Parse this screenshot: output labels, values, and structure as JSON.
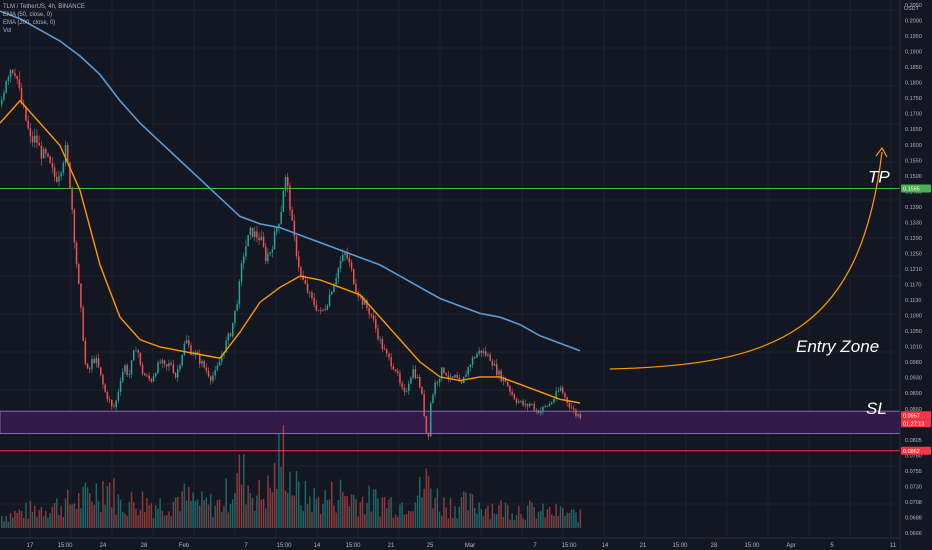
{
  "legend": {
    "symbol": "TLM / TetherUS, 4h, BINANCE",
    "ema50": "EMA (50, close, 0)",
    "ema200": "EMA (200, close, 0)",
    "vol": "Vol"
  },
  "price_axis": {
    "currency": "USDT",
    "ticks": [
      "0.2050",
      "0.2000",
      "0.1950",
      "0.1900",
      "0.1850",
      "0.1800",
      "0.1750",
      "0.1700",
      "0.1650",
      "0.1600",
      "0.1550",
      "0.1500",
      "0.1450",
      "0.1390",
      "0.1330",
      "0.1290",
      "0.1250",
      "0.1210",
      "0.1170",
      "0.1130",
      "0.1090",
      "0.1050",
      "0.1010",
      "0.0980",
      "0.0930",
      "0.0890",
      "0.0860",
      "0.0830",
      "0.0805",
      "0.0780",
      "0.0755",
      "0.0730",
      "0.0708",
      "0.0688",
      "0.0666"
    ],
    "tp_tag": "0.1565",
    "price_tag": "0.0957",
    "countdown_tag": "01:27:13",
    "sl_tag": "0.0862",
    "colors": {
      "tp": "#4caf50",
      "price": "#f23645",
      "sl": "#f23645"
    }
  },
  "time_axis": {
    "ticks": [
      "17",
      "15:00",
      "24",
      "28",
      "Feb",
      "7",
      "15:00",
      "14",
      "15:00",
      "21",
      "25",
      "Mar",
      "7",
      "15:00",
      "14",
      "21",
      "15:00",
      "28",
      "15:00",
      "Apr",
      "5",
      "11"
    ]
  },
  "annotations": {
    "tp": "TP",
    "entry": "Entry Zone",
    "sl": "SL",
    "colors": {
      "tp_line": "#4caf50",
      "sl_line": "#f23645",
      "zone_fill": "#311a47",
      "zone_border": "#9c7fcf",
      "arrow": "#ff9800"
    }
  },
  "chart_data": {
    "type": "candlestick",
    "symbol": "TLM / TetherUS",
    "interval": "4h",
    "exchange": "BINANCE",
    "ylim": [
      0.0655,
      0.207
    ],
    "series_colors": {
      "up": "#26a69a",
      "down": "#ef5350",
      "ema50": "#ff9800",
      "ema200": "#5b9bd5"
    },
    "close_path": [
      [
        0,
        0.179
      ],
      [
        5,
        0.186
      ],
      [
        10,
        0.189
      ],
      [
        15,
        0.188
      ],
      [
        20,
        0.18
      ],
      [
        25,
        0.175
      ],
      [
        30,
        0.169
      ],
      [
        35,
        0.17
      ],
      [
        40,
        0.166
      ],
      [
        45,
        0.165
      ],
      [
        50,
        0.162
      ],
      [
        55,
        0.159
      ],
      [
        60,
        0.162
      ],
      [
        65,
        0.167
      ],
      [
        70,
        0.156
      ],
      [
        74,
        0.142
      ],
      [
        78,
        0.13
      ],
      [
        82,
        0.118
      ],
      [
        85,
        0.108
      ],
      [
        88,
        0.107
      ],
      [
        92,
        0.111
      ],
      [
        96,
        0.11
      ],
      [
        100,
        0.106
      ],
      [
        104,
        0.102
      ],
      [
        108,
        0.1
      ],
      [
        112,
        0.097
      ],
      [
        116,
        0.1
      ],
      [
        120,
        0.106
      ],
      [
        124,
        0.109
      ],
      [
        128,
        0.106
      ],
      [
        132,
        0.111
      ],
      [
        136,
        0.115
      ],
      [
        140,
        0.108
      ],
      [
        145,
        0.106
      ],
      [
        150,
        0.105
      ],
      [
        155,
        0.108
      ],
      [
        160,
        0.11
      ],
      [
        165,
        0.108
      ],
      [
        170,
        0.11
      ],
      [
        175,
        0.106
      ],
      [
        180,
        0.111
      ],
      [
        185,
        0.116
      ],
      [
        190,
        0.113
      ],
      [
        195,
        0.112
      ],
      [
        200,
        0.11
      ],
      [
        205,
        0.108
      ],
      [
        210,
        0.106
      ],
      [
        215,
        0.107
      ],
      [
        220,
        0.111
      ],
      [
        225,
        0.115
      ],
      [
        230,
        0.118
      ],
      [
        234,
        0.123
      ],
      [
        238,
        0.129
      ],
      [
        242,
        0.138
      ],
      [
        246,
        0.142
      ],
      [
        250,
        0.145
      ],
      [
        255,
        0.144
      ],
      [
        260,
        0.143
      ],
      [
        265,
        0.138
      ],
      [
        270,
        0.14
      ],
      [
        275,
        0.145
      ],
      [
        280,
        0.15
      ],
      [
        284,
        0.16
      ],
      [
        288,
        0.155
      ],
      [
        292,
        0.145
      ],
      [
        296,
        0.139
      ],
      [
        300,
        0.133
      ],
      [
        305,
        0.13
      ],
      [
        310,
        0.127
      ],
      [
        315,
        0.125
      ],
      [
        320,
        0.123
      ],
      [
        325,
        0.125
      ],
      [
        330,
        0.129
      ],
      [
        335,
        0.133
      ],
      [
        340,
        0.137
      ],
      [
        345,
        0.139
      ],
      [
        350,
        0.135
      ],
      [
        355,
        0.13
      ],
      [
        360,
        0.127
      ],
      [
        365,
        0.125
      ],
      [
        370,
        0.123
      ],
      [
        375,
        0.119
      ],
      [
        380,
        0.115
      ],
      [
        385,
        0.112
      ],
      [
        390,
        0.11
      ],
      [
        395,
        0.108
      ],
      [
        400,
        0.103
      ],
      [
        404,
        0.101
      ],
      [
        408,
        0.105
      ],
      [
        412,
        0.108
      ],
      [
        416,
        0.106
      ],
      [
        420,
        0.103
      ],
      [
        424,
        0.095
      ],
      [
        427,
        0.088
      ],
      [
        430,
        0.099
      ],
      [
        434,
        0.104
      ],
      [
        438,
        0.106
      ],
      [
        442,
        0.108
      ],
      [
        446,
        0.107
      ],
      [
        450,
        0.105
      ],
      [
        455,
        0.106
      ],
      [
        460,
        0.103
      ],
      [
        465,
        0.107
      ],
      [
        470,
        0.11
      ],
      [
        475,
        0.112
      ],
      [
        480,
        0.113
      ],
      [
        485,
        0.112
      ],
      [
        490,
        0.111
      ],
      [
        495,
        0.108
      ],
      [
        500,
        0.106
      ],
      [
        505,
        0.105
      ],
      [
        510,
        0.102
      ],
      [
        515,
        0.1
      ],
      [
        520,
        0.099
      ],
      [
        525,
        0.098
      ],
      [
        530,
        0.099
      ],
      [
        535,
        0.097
      ],
      [
        540,
        0.097
      ],
      [
        545,
        0.098
      ],
      [
        550,
        0.099
      ],
      [
        555,
        0.101
      ],
      [
        560,
        0.103
      ],
      [
        565,
        0.1
      ],
      [
        570,
        0.098
      ],
      [
        575,
        0.096
      ],
      [
        580,
        0.0957
      ]
    ],
    "ema50_path": [
      [
        0,
        0.174
      ],
      [
        20,
        0.18
      ],
      [
        40,
        0.174
      ],
      [
        60,
        0.168
      ],
      [
        80,
        0.156
      ],
      [
        100,
        0.136
      ],
      [
        120,
        0.122
      ],
      [
        140,
        0.116
      ],
      [
        160,
        0.114
      ],
      [
        180,
        0.113
      ],
      [
        200,
        0.112
      ],
      [
        220,
        0.111
      ],
      [
        240,
        0.118
      ],
      [
        260,
        0.126
      ],
      [
        280,
        0.13
      ],
      [
        300,
        0.133
      ],
      [
        320,
        0.132
      ],
      [
        340,
        0.13
      ],
      [
        360,
        0.128
      ],
      [
        380,
        0.122
      ],
      [
        400,
        0.116
      ],
      [
        420,
        0.11
      ],
      [
        440,
        0.106
      ],
      [
        460,
        0.105
      ],
      [
        480,
        0.106
      ],
      [
        500,
        0.106
      ],
      [
        520,
        0.104
      ],
      [
        540,
        0.102
      ],
      [
        560,
        0.1
      ],
      [
        580,
        0.099
      ]
    ],
    "ema200_path": [
      [
        0,
        0.204
      ],
      [
        20,
        0.202
      ],
      [
        40,
        0.199
      ],
      [
        60,
        0.196
      ],
      [
        80,
        0.192
      ],
      [
        100,
        0.187
      ],
      [
        120,
        0.18
      ],
      [
        140,
        0.174
      ],
      [
        160,
        0.169
      ],
      [
        180,
        0.164
      ],
      [
        200,
        0.159
      ],
      [
        220,
        0.154
      ],
      [
        240,
        0.149
      ],
      [
        260,
        0.147
      ],
      [
        280,
        0.146
      ],
      [
        300,
        0.144
      ],
      [
        320,
        0.142
      ],
      [
        340,
        0.14
      ],
      [
        360,
        0.138
      ],
      [
        380,
        0.136
      ],
      [
        400,
        0.133
      ],
      [
        420,
        0.13
      ],
      [
        440,
        0.127
      ],
      [
        460,
        0.125
      ],
      [
        480,
        0.123
      ],
      [
        500,
        0.122
      ],
      [
        520,
        0.12
      ],
      [
        540,
        0.117
      ],
      [
        560,
        0.115
      ],
      [
        580,
        0.113
      ]
    ],
    "volume_peaks": [
      [
        0,
        0.15
      ],
      [
        20,
        0.2
      ],
      [
        40,
        0.25
      ],
      [
        60,
        0.3
      ],
      [
        80,
        0.35
      ],
      [
        100,
        0.5
      ],
      [
        105,
        0.6
      ],
      [
        120,
        0.3
      ],
      [
        140,
        0.35
      ],
      [
        160,
        0.3
      ],
      [
        180,
        0.4
      ],
      [
        200,
        0.3
      ],
      [
        220,
        0.3
      ],
      [
        235,
        0.6
      ],
      [
        240,
        0.7
      ],
      [
        250,
        0.5
      ],
      [
        260,
        0.4
      ],
      [
        270,
        0.5
      ],
      [
        280,
        0.9
      ],
      [
        284,
        1.0
      ],
      [
        290,
        0.6
      ],
      [
        300,
        0.4
      ],
      [
        320,
        0.35
      ],
      [
        340,
        0.45
      ],
      [
        360,
        0.35
      ],
      [
        380,
        0.35
      ],
      [
        400,
        0.3
      ],
      [
        410,
        0.4
      ],
      [
        420,
        0.45
      ],
      [
        427,
        0.6
      ],
      [
        440,
        0.3
      ],
      [
        460,
        0.3
      ],
      [
        480,
        0.3
      ],
      [
        500,
        0.25
      ],
      [
        520,
        0.25
      ],
      [
        540,
        0.2
      ],
      [
        560,
        0.2
      ],
      [
        580,
        0.15
      ]
    ],
    "levels": {
      "tp": 0.1565,
      "entry_zone": [
        0.0908,
        0.0968
      ],
      "sl": 0.0862
    }
  }
}
